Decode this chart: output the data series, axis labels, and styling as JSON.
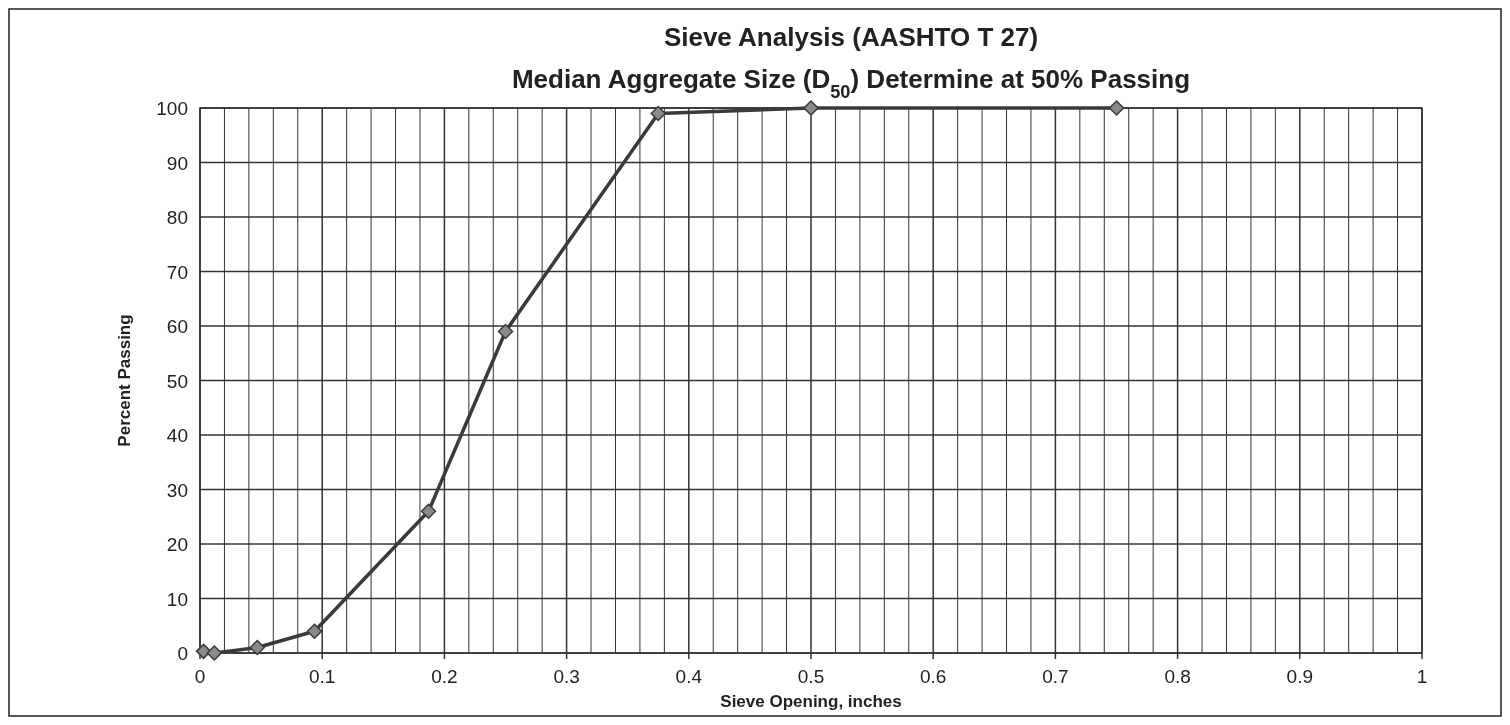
{
  "chart_data": {
    "type": "line",
    "title": "Sieve Analysis (AASHTO T 27)",
    "subtitle": "Median Aggregate Size (D$_{50}$) Determine at 50% Passing",
    "xlabel": "Sieve Opening, inches",
    "ylabel": "Percent Passing",
    "x": [
      0.0029,
      0.0117,
      0.0469,
      0.0937,
      0.187,
      0.25,
      0.375,
      0.5,
      0.75
    ],
    "series": [
      {
        "color": "#3a3a3a",
        "values": [
          0.3,
          0,
          1,
          4,
          26,
          59,
          99,
          100,
          100
        ]
      }
    ],
    "xlim": [
      0,
      1
    ],
    "ylim": [
      0,
      100
    ],
    "xticks": [
      0,
      {
        "value": 0.02,
        "label": null
      },
      {
        "value": 0.04,
        "label": null
      },
      {
        "value": 0.06,
        "label": null
      },
      {
        "value": 0.08,
        "label": null
      },
      0.1,
      {
        "value": 0.12,
        "label": null
      },
      {
        "value": 0.14,
        "label": null
      },
      {
        "value": 0.16,
        "label": null
      },
      {
        "value": 0.18,
        "label": null
      },
      0.2,
      {
        "value": 0.22,
        "label": null
      },
      {
        "value": 0.24,
        "label": null
      },
      {
        "value": 0.26,
        "label": null
      },
      {
        "value": 0.28,
        "label": null
      },
      0.3,
      {
        "value": 0.32,
        "label": null
      },
      {
        "value": 0.34,
        "label": null
      },
      {
        "value": 0.36,
        "label": null
      },
      {
        "value": 0.38,
        "label": null
      },
      0.4,
      {
        "value": 0.42,
        "label": null
      },
      {
        "value": 0.44,
        "label": null
      },
      {
        "value": 0.46,
        "label": null
      },
      {
        "value": 0.48,
        "label": null
      },
      0.5,
      {
        "value": 0.52,
        "label": null
      },
      {
        "value": 0.54,
        "label": null
      },
      {
        "value": 0.56,
        "label": null
      },
      {
        "value": 0.58,
        "label": null
      },
      0.6,
      {
        "value": 0.62,
        "label": null
      },
      {
        "value": 0.64,
        "label": null
      },
      {
        "value": 0.66,
        "label": null
      },
      {
        "value": 0.68,
        "label": null
      },
      0.7,
      {
        "value": 0.72,
        "label": null
      },
      {
        "value": 0.74,
        "label": null
      },
      {
        "value": 0.76,
        "label": null
      },
      {
        "value": 0.78,
        "label": null
      },
      0.8,
      {
        "value": 0.82,
        "label": null
      },
      {
        "value": 0.84,
        "label": null
      },
      {
        "value": 0.86,
        "label": null
      },
      {
        "value": 0.88,
        "label": null
      },
      0.9,
      {
        "value": 0.92,
        "label": null
      },
      {
        "value": 0.94,
        "label": null
      },
      {
        "value": 0.96,
        "label": null
      },
      {
        "value": 0.98,
        "label": null
      },
      1
    ],
    "yticks": [
      0,
      10,
      20,
      30,
      40,
      50,
      60,
      70,
      80,
      90,
      100
    ],
    "grid": true,
    "marker": "diamond",
    "line_style": "solid"
  }
}
